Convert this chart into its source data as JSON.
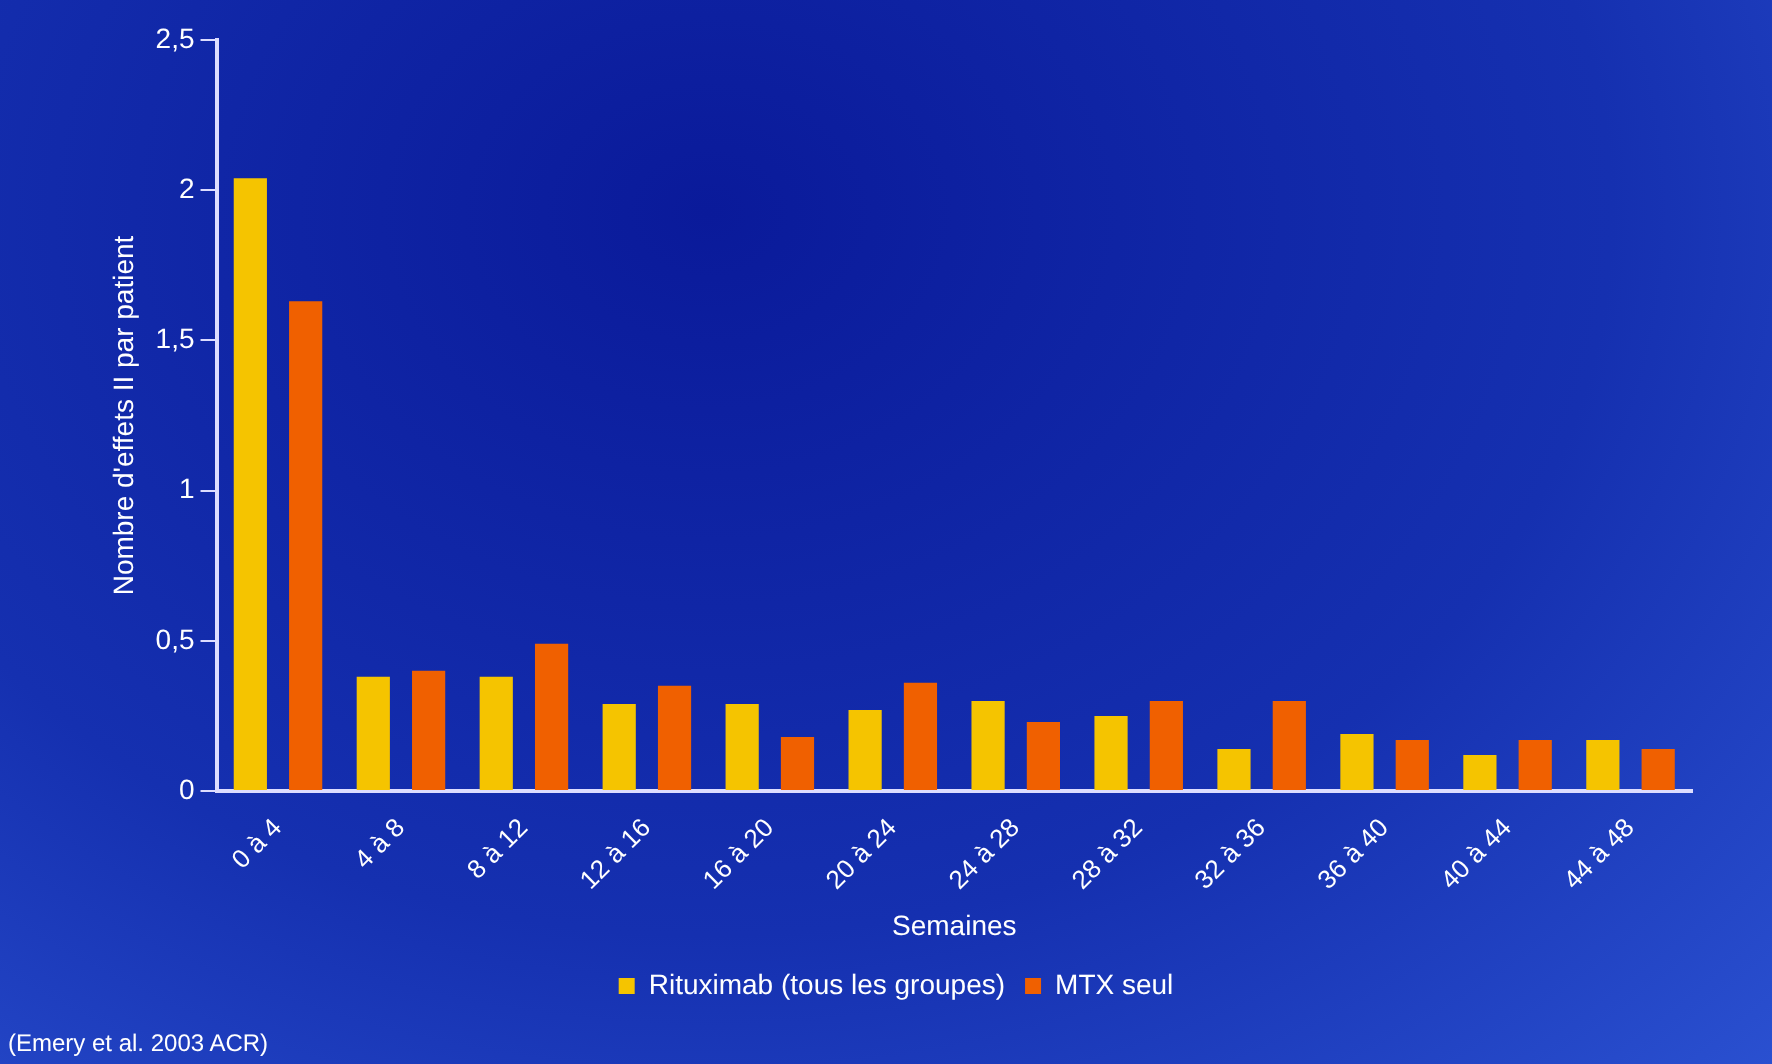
{
  "chart_data": {
    "type": "bar",
    "xlabel": "Semaines",
    "ylabel": "Nombre d'effets II par patient",
    "categories": [
      "0 à 4",
      "4 à 8",
      "8 à 12",
      "12 à 16",
      "16 à 20",
      "20 à 24",
      "24 à 28",
      "28 à 32",
      "32 à 36",
      "36 à 40",
      "40 à 44",
      "44 à 48"
    ],
    "series": [
      {
        "name": "Rituximab (tous les groupes)",
        "color": "#f5c400",
        "values": [
          2.04,
          0.38,
          0.38,
          0.29,
          0.29,
          0.27,
          0.3,
          0.25,
          0.14,
          0.19,
          0.12,
          0.17
        ]
      },
      {
        "name": "MTX seul",
        "color": "#f06000",
        "values": [
          1.63,
          0.4,
          0.49,
          0.35,
          0.18,
          0.36,
          0.23,
          0.3,
          0.3,
          0.17,
          0.17,
          0.14
        ]
      }
    ],
    "ylim": [
      0,
      2.5
    ],
    "yticks": [
      0,
      {
        "value": 0.5,
        "label": "0,5"
      },
      1,
      {
        "value": 1.5,
        "label": "1,5"
      },
      2,
      {
        "value": 2.5,
        "label": "2,5"
      }
    ],
    "grid": false,
    "legend": "bottom",
    "annotations": [
      "(Emery et al. 2003 ACR)"
    ]
  }
}
